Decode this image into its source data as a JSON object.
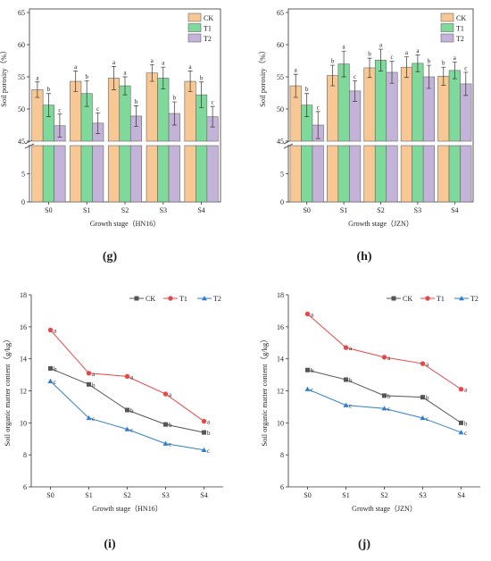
{
  "panel_labels": [
    "(g)",
    "(h)",
    "(i)",
    "(j)"
  ],
  "colors": {
    "CK_bar": "#f7c893",
    "T1_bar": "#7fd99a",
    "T2_bar": "#c4b3d8",
    "CK_line": "#555555",
    "T1_line": "#e8474a",
    "T2_line": "#2e7fd0"
  },
  "chart_data": [
    {
      "type": "bar",
      "panel": "(g)",
      "xlabel": "Growth stage（HN16）",
      "ylabel": "Soil porosity（%）",
      "categories": [
        "S0",
        "S1",
        "S2",
        "S3",
        "S4"
      ],
      "y_break": true,
      "y_ticks_lower": [
        0,
        5
      ],
      "y_ticks_upper": [
        45,
        50,
        55,
        60,
        65
      ],
      "legend": "top-right",
      "series": [
        {
          "name": "CK",
          "values": [
            53.0,
            54.3,
            54.8,
            55.6,
            54.3
          ],
          "errors": [
            1.2,
            1.6,
            1.8,
            1.3,
            1.6
          ],
          "letters": [
            "a",
            "a",
            "a",
            "a",
            "a"
          ]
        },
        {
          "name": "T1",
          "values": [
            50.6,
            52.4,
            53.6,
            54.8,
            52.2
          ],
          "errors": [
            1.8,
            2.0,
            1.4,
            1.7,
            2.0
          ],
          "letters": [
            "b",
            "b",
            "a",
            "a",
            "b"
          ]
        },
        {
          "name": "T2",
          "values": [
            47.4,
            47.8,
            48.9,
            49.3,
            48.8
          ],
          "errors": [
            1.8,
            1.6,
            1.6,
            1.8,
            1.6
          ],
          "letters": [
            "c",
            "c",
            "b",
            "b",
            "c"
          ]
        }
      ]
    },
    {
      "type": "bar",
      "panel": "(h)",
      "xlabel": "Growth stage（JZN）",
      "ylabel": "Soil porosity（%）",
      "categories": [
        "S0",
        "S1",
        "S2",
        "S3",
        "S4"
      ],
      "y_break": true,
      "y_ticks_lower": [
        0,
        5
      ],
      "y_ticks_upper": [
        45,
        50,
        55,
        60,
        65
      ],
      "legend": "top-right",
      "series": [
        {
          "name": "CK",
          "values": [
            53.6,
            55.2,
            56.4,
            56.5,
            55.1
          ],
          "errors": [
            1.8,
            1.6,
            1.5,
            1.6,
            1.4
          ],
          "letters": [
            "a",
            "b",
            "b",
            "a",
            "b"
          ]
        },
        {
          "name": "T1",
          "values": [
            50.6,
            57.0,
            57.6,
            57.1,
            56.0
          ],
          "errors": [
            1.8,
            2.0,
            1.7,
            1.3,
            1.3
          ],
          "letters": [
            "b",
            "a",
            "a",
            "a",
            "a"
          ]
        },
        {
          "name": "T2",
          "values": [
            47.5,
            52.8,
            55.7,
            55.0,
            53.9
          ],
          "errors": [
            2.1,
            1.6,
            1.7,
            1.8,
            1.8
          ],
          "letters": [
            "c",
            "c",
            "c",
            "b",
            "c"
          ]
        }
      ]
    },
    {
      "type": "line",
      "panel": "(i)",
      "xlabel": "Growth stage（HN16）",
      "ylabel": "Soil organic matter content（g/kg）",
      "categories": [
        "S0",
        "S1",
        "S2",
        "S3",
        "S4"
      ],
      "ylim": [
        6,
        18
      ],
      "y_ticks": [
        6,
        8,
        10,
        12,
        14,
        16,
        18
      ],
      "legend": "top-right",
      "series": [
        {
          "name": "CK",
          "values": [
            13.4,
            12.4,
            10.8,
            9.9,
            9.4
          ],
          "letters": [
            "b",
            "b",
            "b",
            "b",
            "b"
          ]
        },
        {
          "name": "T1",
          "values": [
            15.8,
            13.1,
            12.9,
            11.8,
            10.1
          ],
          "letters": [
            "a",
            "a",
            "a",
            "a",
            "a"
          ]
        },
        {
          "name": "T2",
          "values": [
            12.6,
            10.3,
            9.6,
            8.7,
            8.3
          ],
          "letters": [
            "c",
            "c",
            "c",
            "c",
            "c"
          ]
        }
      ]
    },
    {
      "type": "line",
      "panel": "(j)",
      "xlabel": "Growth stage（JZN）",
      "ylabel": "Soil organic matter content（g/kg）",
      "categories": [
        "S0",
        "S1",
        "S2",
        "S3",
        "S4"
      ],
      "ylim": [
        6,
        18
      ],
      "y_ticks": [
        6,
        8,
        10,
        12,
        14,
        16,
        18
      ],
      "legend": "top-right",
      "series": [
        {
          "name": "CK",
          "values": [
            13.3,
            12.7,
            11.7,
            11.6,
            10.0
          ],
          "letters": [
            "b",
            "b",
            "b",
            "b",
            "b"
          ]
        },
        {
          "name": "T1",
          "values": [
            16.8,
            14.7,
            14.1,
            13.7,
            12.1
          ],
          "letters": [
            "a",
            "a",
            "a",
            "a",
            "a"
          ]
        },
        {
          "name": "T2",
          "values": [
            12.1,
            11.1,
            10.9,
            10.3,
            9.4
          ],
          "letters": [
            "c",
            "c",
            "c",
            "c",
            "c"
          ]
        }
      ]
    }
  ]
}
